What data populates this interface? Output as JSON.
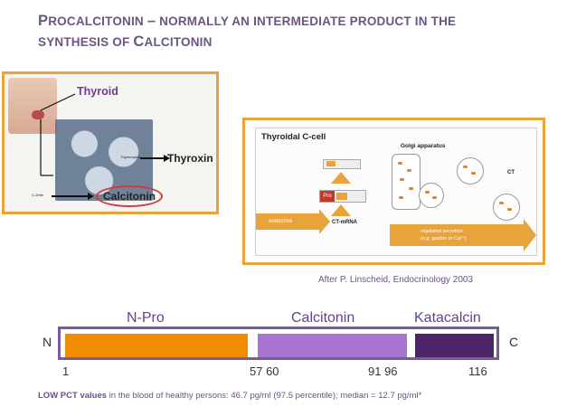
{
  "title": {
    "w1_initial": "P",
    "w1_rest": "ROCALCITONIN",
    "dash": "–",
    "w2_rest": " NORMALLY AN INTERMEDIATE PRODUCT IN THE",
    "w3_rest": "SYNTHESIS OF ",
    "w4_initial": "C",
    "w4_rest": "ALCITONIN"
  },
  "figure_left": {
    "thyroid_label": "Thyroid",
    "thyrocyten_label": "Thyreocyten",
    "thyroxin_label": "Thyroxin",
    "c_zelle_label": "C-Zelle",
    "calcitonin_label": "Calcitonin"
  },
  "figure_right": {
    "title": "Thyroidal C-cell",
    "golgi_label": "Golgi apparatus",
    "ct_label": "CT",
    "pro_label": "Pro",
    "ctmrna_label": "CT-mRNA",
    "endocrine_label": "endocrine",
    "regulated_line1": "regulated secretion",
    "regulated_line2": "(e.g. gastrin or Ca²⁺)"
  },
  "caption": "After P. Linscheid, Endocrinology 2003",
  "protein_bar": {
    "regions": [
      {
        "name": "N-Pro",
        "start": 1,
        "end": 57,
        "color": "#f08c00"
      },
      {
        "name": "Calcitonin",
        "start": 60,
        "end": 91,
        "color": "#a774d1"
      },
      {
        "name": "Katacalcin",
        "start": 96,
        "end": 116,
        "color": "#4e2468"
      }
    ],
    "n_terminus": "N",
    "c_terminus": "C",
    "positions": [
      "1",
      "57 60",
      "91 96",
      "116"
    ],
    "border_color": "#7b5a9b"
  },
  "footnote": {
    "bold": "LOW PCT values",
    "rest": " in the blood of healthy persons:   46.7 pg/ml (97.5 percentile); median = 12.7 pg/ml*"
  }
}
